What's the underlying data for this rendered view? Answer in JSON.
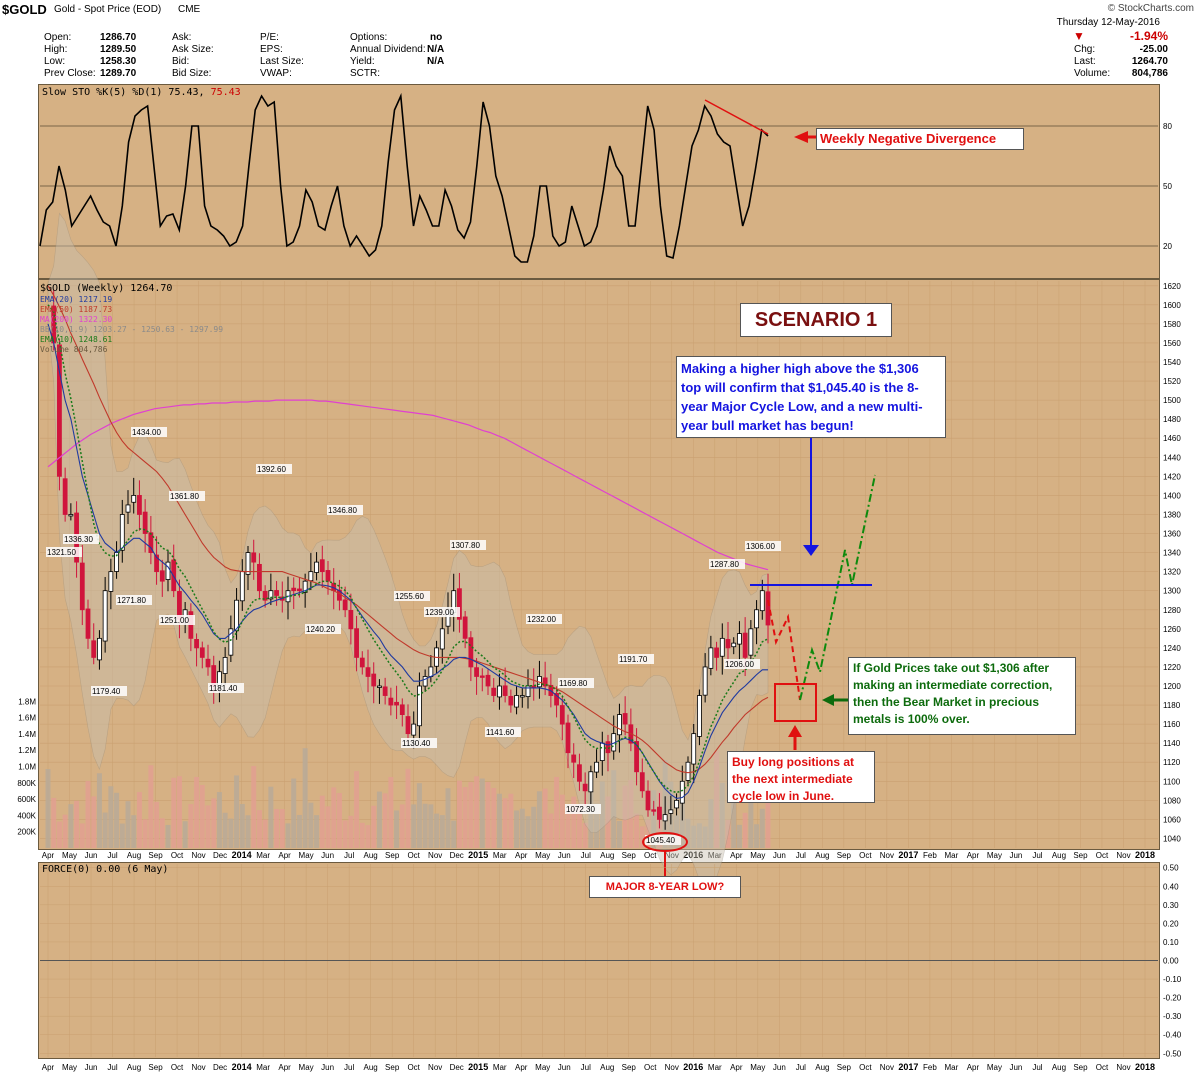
{
  "header": {
    "symbol": "$GOLD",
    "name": "Gold - Spot Price (EOD)",
    "exchange": "CME",
    "copyright": "© StockCharts.com",
    "date": "Thursday 12-May-2016",
    "change_pct": "-1.94%",
    "stats_left": [
      {
        "label": "Open:",
        "value": "1286.70"
      },
      {
        "label": "High:",
        "value": "1289.50"
      },
      {
        "label": "Low:",
        "value": "1258.30"
      },
      {
        "label": "Prev Close:",
        "value": "1289.70"
      }
    ],
    "stats_mid": [
      "Ask:",
      "Ask Size:",
      "Bid:",
      "Bid Size:"
    ],
    "stats_mid2": [
      "P/E:",
      "EPS:",
      "Last Size:",
      "VWAP:"
    ],
    "stats_mid3": [
      {
        "label": "Options:",
        "value": "no"
      },
      {
        "label": "Annual Dividend:",
        "value": "N/A"
      },
      {
        "label": "Yield:",
        "value": "N/A"
      },
      {
        "label": "SCTR:",
        "value": ""
      }
    ],
    "stats_right": [
      {
        "label": "Chg:",
        "value": "-25.00"
      },
      {
        "label": "Last:",
        "value": "1264.70"
      },
      {
        "label": "Volume:",
        "value": "804,786"
      }
    ]
  },
  "sto_legend": {
    "text": "Slow STO %K(5) %D(1) 75.43,",
    "value": "75.43"
  },
  "main_legend": [
    {
      "text": "$GOLD (Weekly) 1264.70",
      "color": "#000000"
    },
    {
      "text": "EMA(20) 1217.19",
      "color": "#1f3aa0"
    },
    {
      "text": "EMA(50) 1187.73",
      "color": "#c0392b"
    },
    {
      "text": "MA(200) 1322.30",
      "color": "#e040d0"
    },
    {
      "text": "BB(10,1.9) 1203.27 - 1250.63 - 1297.99",
      "color": "#8a8a8a"
    },
    {
      "text": "EMA(10) 1248.61",
      "color": "#1a7a1a"
    },
    {
      "text": "Volume 804,786",
      "color": "#8a6a5a"
    }
  ],
  "force_legend": "FORCE(0) 0.00 (6 May)",
  "colors": {
    "panel": "#d6b184",
    "up": "#000000",
    "down": "#d0143c",
    "ema20": "#1f3aa0",
    "ema50": "#c0392b",
    "ma200": "#e040d0",
    "ema10": "#1a7a1a",
    "vol": "#b89c8a"
  },
  "annotations": {
    "scenario": "SCENARIO 1",
    "divergence": "Weekly Negative Divergence",
    "higher_high": "Making a higher high above the $1,306 top will confirm that $1,045.40 is the 8-year Major Cycle Low, and a new multi-year bull market has begun!",
    "bear_over": "If Gold Prices take out $1,306 after making an intermediate correction, then the Bear Market in precious metals is 100% over.",
    "buy_long": "Buy long positions at the next intermediate cycle low in June.",
    "major_low": "MAJOR 8-YEAR LOW?"
  },
  "chart_data": [
    {
      "type": "line",
      "name": "Slow STO",
      "ylim": [
        5,
        100
      ],
      "yticks": [
        20,
        50,
        80
      ],
      "y": [
        20,
        38,
        42,
        60,
        48,
        30,
        35,
        40,
        45,
        38,
        32,
        30,
        20,
        40,
        72,
        85,
        88,
        90,
        60,
        30,
        35,
        36,
        28,
        50,
        80,
        80,
        40,
        30,
        28,
        25,
        20,
        22,
        30,
        60,
        88,
        95,
        90,
        92,
        50,
        20,
        22,
        30,
        48,
        42,
        30,
        28,
        40,
        50,
        30,
        20,
        25,
        20,
        15,
        18,
        30,
        62,
        88,
        95,
        60,
        30,
        45,
        38,
        30,
        30,
        48,
        40,
        28,
        24,
        32,
        60,
        92,
        80,
        55,
        45,
        30,
        15,
        12,
        12,
        25,
        50,
        50,
        25,
        20,
        22,
        40,
        30,
        20,
        22,
        30,
        48,
        70,
        60,
        55,
        30,
        30,
        60,
        90,
        78,
        40,
        15,
        14,
        30,
        50,
        70,
        78,
        90,
        85,
        76,
        72,
        70,
        50,
        30,
        40,
        58,
        78,
        75
      ]
    },
    {
      "type": "line",
      "name": "Weekly OHLC",
      "ylim": [
        1030,
        1625
      ],
      "yticks": [
        1040,
        1060,
        1080,
        1100,
        1120,
        1140,
        1160,
        1180,
        1200,
        1220,
        1240,
        1260,
        1280,
        1300,
        1320,
        1340,
        1360,
        1380,
        1400,
        1420,
        1440,
        1460,
        1480,
        1500,
        1520,
        1540,
        1560,
        1580,
        1600,
        1620
      ],
      "x_labels": [
        "Apr",
        "May",
        "Jun",
        "Jul",
        "Aug",
        "Sep",
        "Oct",
        "Nov",
        "Dec",
        "2014",
        "Mar",
        "Apr",
        "May",
        "Jun",
        "Jul",
        "Aug",
        "Sep",
        "Oct",
        "Nov",
        "Dec",
        "2015",
        "Mar",
        "Apr",
        "May",
        "Jun",
        "Jul",
        "Aug",
        "Sep",
        "Oct",
        "Nov",
        "2016",
        "Mar",
        "Apr",
        "May",
        "Jun",
        "Jul",
        "Aug",
        "Sep",
        "Oct",
        "Nov",
        "2017",
        "Feb",
        "Mar",
        "Apr",
        "May",
        "Jun",
        "Jul",
        "Aug",
        "Sep",
        "Oct",
        "Nov",
        "2018"
      ],
      "close": [
        1600,
        1560,
        1420,
        1380,
        1380,
        1330,
        1280,
        1250,
        1230,
        1250,
        1300,
        1320,
        1340,
        1380,
        1390,
        1400,
        1380,
        1360,
        1340,
        1320,
        1310,
        1330,
        1300,
        1270,
        1280,
        1250,
        1240,
        1230,
        1220,
        1200,
        1215,
        1230,
        1260,
        1290,
        1320,
        1340,
        1330,
        1300,
        1290,
        1300,
        1295,
        1290,
        1300,
        1300,
        1300,
        1310,
        1320,
        1330,
        1320,
        1310,
        1300,
        1290,
        1280,
        1260,
        1230,
        1220,
        1210,
        1200,
        1200,
        1190,
        1180,
        1180,
        1170,
        1150,
        1160,
        1200,
        1210,
        1220,
        1240,
        1260,
        1280,
        1300,
        1270,
        1250,
        1220,
        1210,
        1210,
        1200,
        1190,
        1200,
        1190,
        1180,
        1190,
        1190,
        1200,
        1200,
        1210,
        1200,
        1190,
        1180,
        1160,
        1130,
        1120,
        1100,
        1090,
        1110,
        1120,
        1140,
        1130,
        1150,
        1170,
        1160,
        1140,
        1110,
        1090,
        1070,
        1070,
        1060,
        1065,
        1070,
        1080,
        1100,
        1120,
        1150,
        1190,
        1220,
        1240,
        1230,
        1250,
        1240,
        1245,
        1255,
        1230,
        1260,
        1280,
        1300,
        1264
      ],
      "ema20": [
        1580,
        1560,
        1530,
        1500,
        1480,
        1450,
        1420,
        1400,
        1380,
        1360,
        1350,
        1345,
        1340,
        1345,
        1350,
        1355,
        1355,
        1350,
        1345,
        1335,
        1330,
        1325,
        1315,
        1305,
        1298,
        1290,
        1283,
        1275,
        1265,
        1255,
        1250,
        1250,
        1255,
        1260,
        1268,
        1275,
        1280,
        1282,
        1285,
        1288,
        1290,
        1292,
        1294,
        1296,
        1298,
        1300,
        1303,
        1306,
        1306,
        1305,
        1303,
        1300,
        1295,
        1290,
        1282,
        1273,
        1265,
        1257,
        1250,
        1240,
        1232,
        1226,
        1220,
        1212,
        1205,
        1205,
        1207,
        1210,
        1213,
        1218,
        1222,
        1228,
        1230,
        1230,
        1228,
        1225,
        1222,
        1218,
        1214,
        1210,
        1206,
        1202,
        1200,
        1198,
        1198,
        1198,
        1198,
        1197,
        1195,
        1190,
        1185,
        1178,
        1170,
        1160,
        1150,
        1145,
        1142,
        1140,
        1138,
        1140,
        1143,
        1145,
        1143,
        1138,
        1130,
        1120,
        1110,
        1100,
        1092,
        1086,
        1082,
        1083,
        1088,
        1100,
        1115,
        1132,
        1148,
        1160,
        1172,
        1180,
        1188,
        1195,
        1200,
        1206,
        1212,
        1217,
        1217
      ],
      "ema50": [
        1620,
        1610,
        1598,
        1585,
        1570,
        1557,
        1543,
        1530,
        1517,
        1503,
        1490,
        1477,
        1466,
        1457,
        1450,
        1445,
        1440,
        1435,
        1430,
        1425,
        1418,
        1410,
        1400,
        1390,
        1380,
        1370,
        1360,
        1350,
        1342,
        1335,
        1330,
        1325,
        1322,
        1321,
        1320,
        1320,
        1320,
        1320,
        1320,
        1320,
        1320,
        1320,
        1318,
        1316,
        1314,
        1312,
        1310,
        1308,
        1305,
        1302,
        1300,
        1297,
        1293,
        1289,
        1285,
        1280,
        1275,
        1270,
        1265,
        1260,
        1255,
        1250,
        1246,
        1242,
        1238,
        1235,
        1233,
        1231,
        1230,
        1230,
        1230,
        1230,
        1230,
        1229,
        1228,
        1226,
        1224,
        1222,
        1220,
        1218,
        1216,
        1214,
        1212,
        1210,
        1208,
        1206,
        1204,
        1202,
        1200,
        1197,
        1194,
        1190,
        1186,
        1182,
        1178,
        1174,
        1170,
        1166,
        1162,
        1158,
        1155,
        1152,
        1150,
        1147,
        1143,
        1138,
        1132,
        1126,
        1120,
        1116,
        1112,
        1110,
        1109,
        1110,
        1113,
        1118,
        1125,
        1133,
        1141,
        1148,
        1156,
        1163,
        1170,
        1175,
        1180,
        1185,
        1188
      ],
      "ma200": [
        1430,
        1436,
        1442,
        1448,
        1454,
        1459,
        1464,
        1468,
        1472,
        1476,
        1479,
        1482,
        1485,
        1487,
        1489,
        1491,
        1492,
        1493,
        1494,
        1495,
        1495,
        1496,
        1496,
        1497,
        1497,
        1497,
        1498,
        1498,
        1498,
        1499,
        1499,
        1499,
        1500,
        1500,
        1500,
        1500,
        1500,
        1500,
        1499,
        1499,
        1498,
        1497,
        1496,
        1495,
        1494,
        1493,
        1492,
        1491,
        1490,
        1489,
        1488,
        1487,
        1486,
        1485,
        1484,
        1482,
        1480,
        1478,
        1476,
        1474,
        1471,
        1468,
        1466,
        1463,
        1460,
        1456,
        1452,
        1448,
        1444,
        1440,
        1436,
        1432,
        1428,
        1424,
        1420,
        1416,
        1412,
        1408,
        1404,
        1400,
        1396,
        1392,
        1388,
        1384,
        1380,
        1376,
        1372,
        1368,
        1364,
        1360,
        1356,
        1352,
        1348,
        1344,
        1340,
        1337,
        1334,
        1331,
        1328,
        1326,
        1324,
        1322
      ]
    },
    {
      "type": "bar",
      "name": "Volume",
      "ylim": [
        0,
        2000000
      ],
      "y_tick_labels": [
        "200K",
        "400K",
        "600K",
        "800K",
        "1.0M",
        "1.2M",
        "1.4M",
        "1.6M",
        "1.8M"
      ]
    },
    {
      "type": "line",
      "name": "Force Index",
      "ylim": [
        -0.52,
        0.52
      ],
      "y_tick_labels": [
        "0.50",
        "0.40",
        "0.30",
        "0.20",
        "0.10",
        "0.00",
        "-0.10",
        "-0.20",
        "-0.30",
        "-0.40",
        "-0.50"
      ],
      "values": [
        0
      ]
    }
  ]
}
